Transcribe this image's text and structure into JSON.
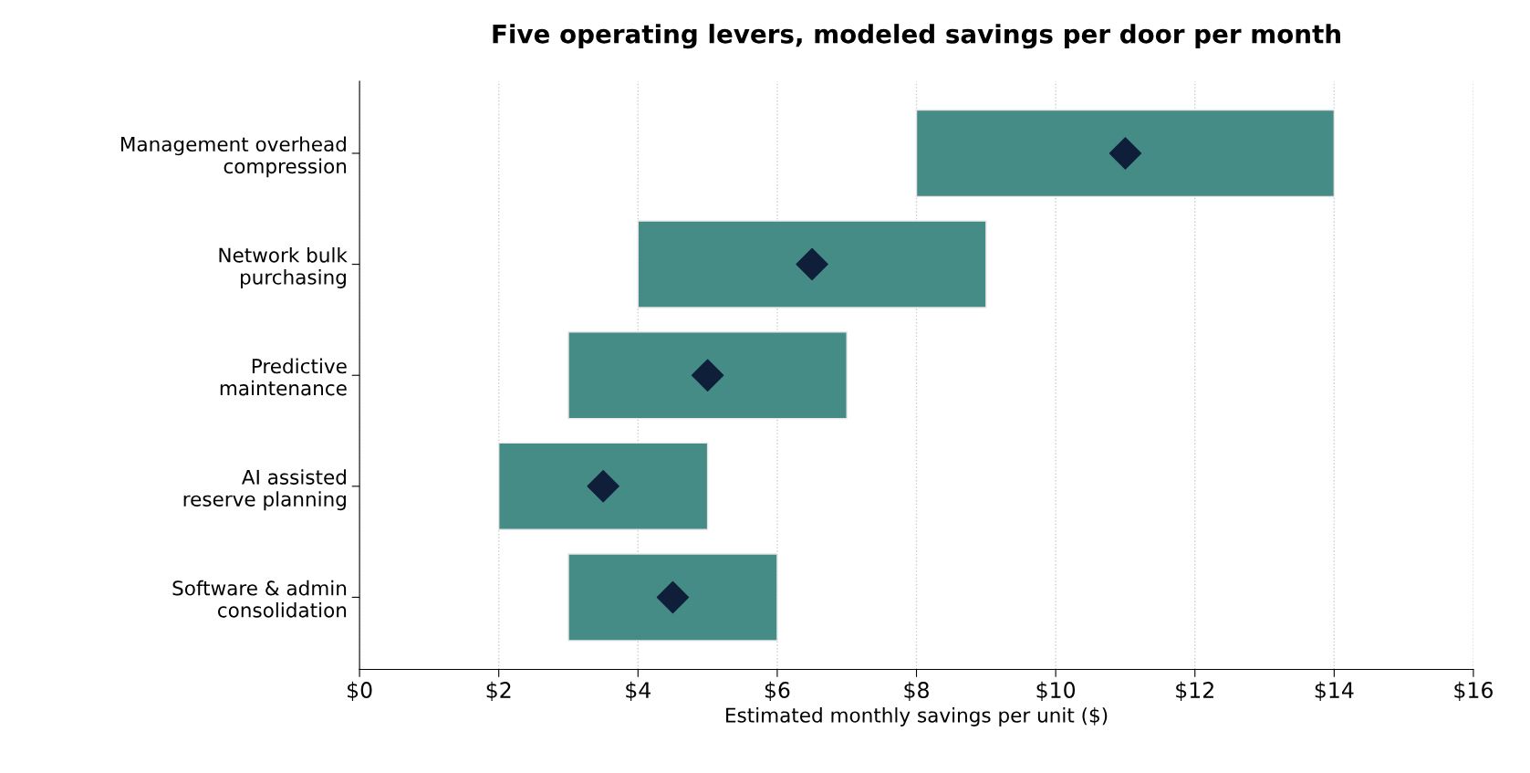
{
  "chart_data": {
    "type": "bar",
    "orientation": "horizontal",
    "title": "Five operating levers, modeled savings per door per month",
    "xlabel": "Estimated monthly savings per unit ($)",
    "categories": [
      "Management overhead\ncompression",
      "Network bulk\npurchasing",
      "Predictive\nmaintenance",
      "AI assisted\nreserve planning",
      "Software & admin\nconsolidation"
    ],
    "series": [
      {
        "color": "#458c87",
        "values": [
          6,
          5,
          4,
          3,
          3
        ],
        "base": [
          8,
          4,
          3,
          2,
          3
        ]
      },
      {
        "type": "scatter",
        "color": "#0f1f3a",
        "marker": "diamond",
        "values": [
          11,
          6.5,
          5,
          3.5,
          4.5
        ]
      }
    ],
    "xlim": [
      0,
      16
    ],
    "xticks": [
      {
        "value": 0,
        "label": "$0"
      },
      {
        "value": 2,
        "label": "$2"
      },
      {
        "value": 4,
        "label": "$4"
      },
      {
        "value": 6,
        "label": "$6"
      },
      {
        "value": 8,
        "label": "$8"
      },
      {
        "value": 10,
        "label": "$10"
      },
      {
        "value": 12,
        "label": "$12"
      },
      {
        "value": 14,
        "label": "$14"
      },
      {
        "value": 16,
        "label": "$16"
      }
    ],
    "grid": "x"
  }
}
